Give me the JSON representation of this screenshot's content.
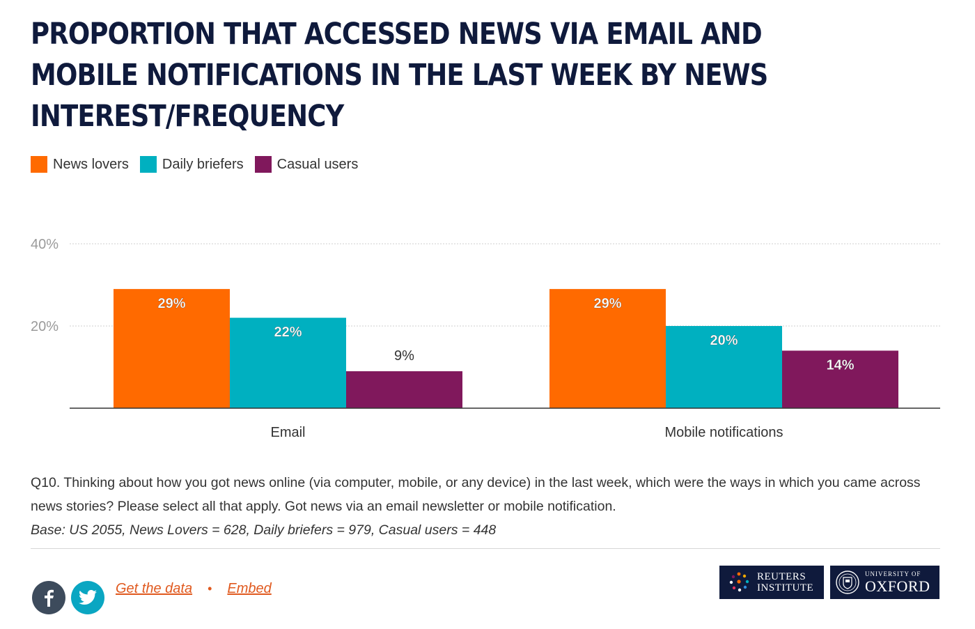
{
  "title": "PROPORTION THAT ACCESSED NEWS VIA EMAIL AND\nMOBILE NOTIFICATIONS IN THE LAST WEEK BY NEWS\nINTEREST/FREQUENCY",
  "legend": [
    {
      "label": "News lovers",
      "color": "#ff6a00"
    },
    {
      "label": "Daily briefers",
      "color": "#00b0c0"
    },
    {
      "label": "Casual users",
      "color": "#80185c"
    }
  ],
  "chart_data": {
    "type": "bar",
    "categories": [
      "Email",
      "Mobile notifications"
    ],
    "series": [
      {
        "name": "News lovers",
        "values": [
          29,
          29
        ],
        "labels": [
          "29%",
          "29%"
        ],
        "color": "#ff6a00"
      },
      {
        "name": "Daily briefers",
        "values": [
          22,
          20
        ],
        "labels": [
          "22%",
          "20%"
        ],
        "color": "#00b0c0"
      },
      {
        "name": "Casual users",
        "values": [
          9,
          14
        ],
        "labels": [
          "9%",
          "14%"
        ],
        "color": "#80185c"
      }
    ],
    "yticks": [
      {
        "value": 20,
        "label": "20%"
      },
      {
        "value": 40,
        "label": "40%"
      }
    ],
    "ylim": [
      0,
      40
    ],
    "grid": true,
    "legend_position": "top-left"
  },
  "note": {
    "question": "Q10. Thinking about how you got news online (via computer, mobile, or any device) in the last week, which were the ways in which you came across news stories? Please select all that apply. Got news via an email newsletter or mobile notification.",
    "base": "Base: US 2055, News Lovers = 628, Daily briefers = 979, Casual users = 448"
  },
  "footer": {
    "get_data": "Get the data",
    "separator": "•",
    "embed": "Embed",
    "reuters_line1": "REUTERS",
    "reuters_line2": "INSTITUTE",
    "oxford_small": "UNIVERSITY OF",
    "oxford_big": "OXFORD"
  }
}
